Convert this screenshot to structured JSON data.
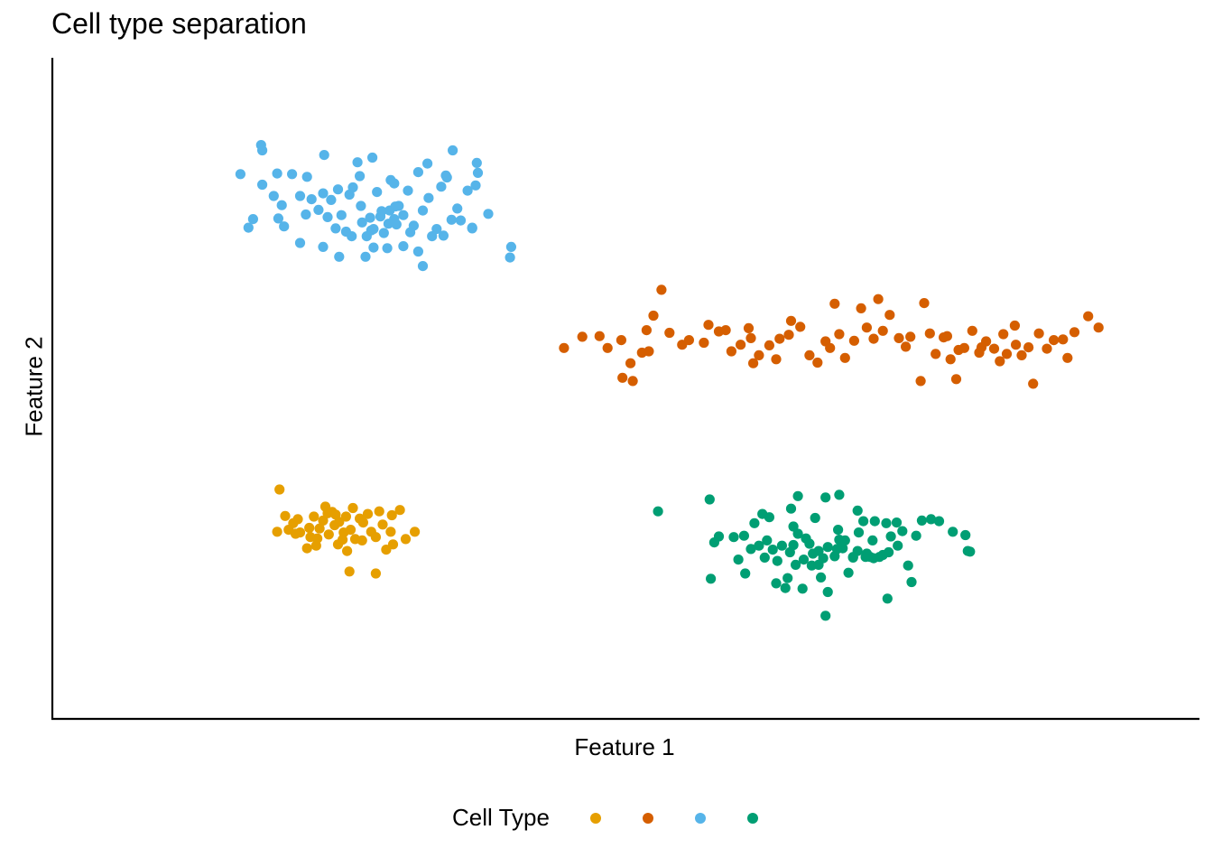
{
  "chart_data": {
    "type": "scatter",
    "title": "Cell type separation",
    "xlabel": "Feature 1",
    "ylabel": "Feature 2",
    "xlim": [
      0,
      100
    ],
    "ylim": [
      0,
      100
    ],
    "grid": false,
    "legend": {
      "title": "Cell Type",
      "position": "bottom"
    },
    "series": [
      {
        "color": "#E69F00",
        "points": [
          [
            19.8,
            34.7
          ],
          [
            20.3,
            30.7
          ],
          [
            19.6,
            28.3
          ],
          [
            20.6,
            28.6
          ],
          [
            21.0,
            29.6
          ],
          [
            21.6,
            28.2
          ],
          [
            21.4,
            30.2
          ],
          [
            22.4,
            28.9
          ],
          [
            22.5,
            27.5
          ],
          [
            23.0,
            26.2
          ],
          [
            22.2,
            25.8
          ],
          [
            23.3,
            28.8
          ],
          [
            23.6,
            30.0
          ],
          [
            24.0,
            31.1
          ],
          [
            23.8,
            32.1
          ],
          [
            24.4,
            31.3
          ],
          [
            24.6,
            29.3
          ],
          [
            24.1,
            27.9
          ],
          [
            24.9,
            26.4
          ],
          [
            25.4,
            28.2
          ],
          [
            25.0,
            29.8
          ],
          [
            25.6,
            30.6
          ],
          [
            26.2,
            31.9
          ],
          [
            26.0,
            28.6
          ],
          [
            26.4,
            27.2
          ],
          [
            25.7,
            25.4
          ],
          [
            25.9,
            22.3
          ],
          [
            27.1,
            29.7
          ],
          [
            27.8,
            28.3
          ],
          [
            28.2,
            27.5
          ],
          [
            28.8,
            29.4
          ],
          [
            29.5,
            28.3
          ],
          [
            28.5,
            31.4
          ],
          [
            29.6,
            30.8
          ],
          [
            30.3,
            31.6
          ],
          [
            29.7,
            26.4
          ],
          [
            29.1,
            25.6
          ],
          [
            30.8,
            27.2
          ],
          [
            28.2,
            22.0
          ],
          [
            31.6,
            28.3
          ],
          [
            21.2,
            28.0
          ],
          [
            23.1,
            27.3
          ],
          [
            24.7,
            30.9
          ],
          [
            26.8,
            30.3
          ],
          [
            27.5,
            31.0
          ],
          [
            22.8,
            30.6
          ],
          [
            25.3,
            27.1
          ],
          [
            27.0,
            27.0
          ]
        ]
      },
      {
        "color": "#D55E00",
        "points": [
          [
            44.6,
            56.1
          ],
          [
            46.2,
            57.8
          ],
          [
            47.7,
            57.9
          ],
          [
            49.6,
            57.3
          ],
          [
            50.6,
            51.1
          ],
          [
            50.4,
            53.8
          ],
          [
            51.4,
            55.4
          ],
          [
            51.8,
            58.8
          ],
          [
            52.4,
            61.0
          ],
          [
            53.1,
            64.9
          ],
          [
            53.8,
            58.4
          ],
          [
            54.9,
            56.6
          ],
          [
            55.5,
            57.3
          ],
          [
            56.8,
            56.9
          ],
          [
            58.1,
            58.6
          ],
          [
            59.2,
            55.6
          ],
          [
            60.0,
            56.6
          ],
          [
            60.9,
            57.6
          ],
          [
            61.1,
            53.8
          ],
          [
            61.6,
            55.0
          ],
          [
            62.5,
            56.5
          ],
          [
            63.4,
            57.5
          ],
          [
            64.2,
            58.1
          ],
          [
            64.4,
            60.2
          ],
          [
            65.2,
            59.3
          ],
          [
            66.0,
            55.0
          ],
          [
            66.7,
            53.9
          ],
          [
            67.4,
            57.1
          ],
          [
            67.8,
            56.1
          ],
          [
            68.6,
            58.2
          ],
          [
            69.1,
            54.6
          ],
          [
            69.9,
            57.2
          ],
          [
            71.0,
            59.2
          ],
          [
            71.6,
            57.5
          ],
          [
            72.4,
            58.7
          ],
          [
            73.0,
            61.1
          ],
          [
            73.8,
            57.6
          ],
          [
            74.4,
            56.3
          ],
          [
            74.8,
            57.8
          ],
          [
            75.7,
            51.1
          ],
          [
            76.5,
            58.3
          ],
          [
            77.0,
            55.2
          ],
          [
            77.7,
            57.7
          ],
          [
            78.3,
            54.4
          ],
          [
            78.8,
            51.4
          ],
          [
            79.5,
            56.1
          ],
          [
            80.2,
            58.7
          ],
          [
            80.8,
            55.4
          ],
          [
            81.4,
            57.1
          ],
          [
            82.1,
            56.0
          ],
          [
            82.6,
            54.1
          ],
          [
            83.2,
            55.2
          ],
          [
            83.9,
            59.5
          ],
          [
            84.5,
            55.0
          ],
          [
            85.1,
            56.2
          ],
          [
            85.5,
            50.7
          ],
          [
            86.0,
            58.3
          ],
          [
            86.7,
            56.0
          ],
          [
            87.3,
            57.3
          ],
          [
            88.1,
            57.4
          ],
          [
            88.5,
            54.6
          ],
          [
            89.1,
            58.5
          ],
          [
            90.3,
            60.9
          ],
          [
            91.2,
            59.2
          ],
          [
            57.2,
            59.6
          ],
          [
            48.4,
            56.1
          ],
          [
            60.7,
            59.1
          ],
          [
            63.1,
            54.4
          ],
          [
            68.2,
            62.8
          ],
          [
            70.5,
            62.1
          ],
          [
            72.0,
            63.5
          ],
          [
            76.0,
            62.9
          ],
          [
            78.0,
            57.9
          ],
          [
            79.0,
            55.8
          ],
          [
            81.0,
            56.2
          ],
          [
            82.9,
            58.2
          ],
          [
            84.0,
            56.6
          ],
          [
            49.7,
            51.6
          ],
          [
            52.0,
            55.6
          ],
          [
            58.7,
            58.8
          ]
        ]
      },
      {
        "color": "#56B4E9",
        "points": [
          [
            18.2,
            86.8
          ],
          [
            18.3,
            86.0
          ],
          [
            18.3,
            80.8
          ],
          [
            19.6,
            82.5
          ],
          [
            20.0,
            77.7
          ],
          [
            19.3,
            79.1
          ],
          [
            19.7,
            75.7
          ],
          [
            20.9,
            82.4
          ],
          [
            21.6,
            79.1
          ],
          [
            22.1,
            76.3
          ],
          [
            22.6,
            78.6
          ],
          [
            23.2,
            77.0
          ],
          [
            23.6,
            79.5
          ],
          [
            24.0,
            75.9
          ],
          [
            24.3,
            78.5
          ],
          [
            24.7,
            74.2
          ],
          [
            25.2,
            76.2
          ],
          [
            25.6,
            73.7
          ],
          [
            25.9,
            79.3
          ],
          [
            26.2,
            80.4
          ],
          [
            26.6,
            84.2
          ],
          [
            26.9,
            77.6
          ],
          [
            27.0,
            75.1
          ],
          [
            27.4,
            73.0
          ],
          [
            27.7,
            75.8
          ],
          [
            28.0,
            74.1
          ],
          [
            28.3,
            79.7
          ],
          [
            28.6,
            76.0
          ],
          [
            28.9,
            73.5
          ],
          [
            29.3,
            74.9
          ],
          [
            29.5,
            81.5
          ],
          [
            29.8,
            75.6
          ],
          [
            30.2,
            77.6
          ],
          [
            30.6,
            76.2
          ],
          [
            31.0,
            79.9
          ],
          [
            31.5,
            74.6
          ],
          [
            31.9,
            82.7
          ],
          [
            32.3,
            76.9
          ],
          [
            32.8,
            78.8
          ],
          [
            33.1,
            73.0
          ],
          [
            33.5,
            74.1
          ],
          [
            33.9,
            80.5
          ],
          [
            34.4,
            81.9
          ],
          [
            34.8,
            75.5
          ],
          [
            35.3,
            77.2
          ],
          [
            35.6,
            75.4
          ],
          [
            36.2,
            79.9
          ],
          [
            36.6,
            74.2
          ],
          [
            37.1,
            82.6
          ],
          [
            40.0,
            71.4
          ],
          [
            39.9,
            69.8
          ],
          [
            32.3,
            68.5
          ],
          [
            27.3,
            69.9
          ],
          [
            25.0,
            69.9
          ],
          [
            23.6,
            71.4
          ],
          [
            21.6,
            72.0
          ],
          [
            20.2,
            74.5
          ],
          [
            17.1,
            74.3
          ],
          [
            17.5,
            75.6
          ],
          [
            16.4,
            82.4
          ],
          [
            23.7,
            85.3
          ],
          [
            27.9,
            84.9
          ],
          [
            27.8,
            73.9
          ],
          [
            28.7,
            76.8
          ],
          [
            26.1,
            73.0
          ],
          [
            29.9,
            77.5
          ],
          [
            30.6,
            71.5
          ],
          [
            31.2,
            73.6
          ],
          [
            30.0,
            74.8
          ],
          [
            29.2,
            71.2
          ],
          [
            28.0,
            71.3
          ],
          [
            22.2,
            82.0
          ],
          [
            24.9,
            80.1
          ],
          [
            26.8,
            82.1
          ],
          [
            29.8,
            81.0
          ],
          [
            34.3,
            82.2
          ],
          [
            36.9,
            80.7
          ],
          [
            32.7,
            84.0
          ],
          [
            34.9,
            86.0
          ],
          [
            37.0,
            84.1
          ],
          [
            38.0,
            76.4
          ],
          [
            36.6,
            74.3
          ],
          [
            34.1,
            73.1
          ],
          [
            31.9,
            70.7
          ],
          [
            29.4,
            76.9
          ]
        ]
      },
      {
        "color": "#009E73",
        "points": [
          [
            52.8,
            31.4
          ],
          [
            57.3,
            33.2
          ],
          [
            58.1,
            27.6
          ],
          [
            57.7,
            26.7
          ],
          [
            57.4,
            21.2
          ],
          [
            59.4,
            27.5
          ],
          [
            60.3,
            27.7
          ],
          [
            59.8,
            24.1
          ],
          [
            60.4,
            22.0
          ],
          [
            60.9,
            25.7
          ],
          [
            61.6,
            26.2
          ],
          [
            61.2,
            29.6
          ],
          [
            61.9,
            31.0
          ],
          [
            62.5,
            30.5
          ],
          [
            62.3,
            27.0
          ],
          [
            62.8,
            25.6
          ],
          [
            63.2,
            23.9
          ],
          [
            63.1,
            20.5
          ],
          [
            63.9,
            19.8
          ],
          [
            64.3,
            25.2
          ],
          [
            64.6,
            26.3
          ],
          [
            64.8,
            23.3
          ],
          [
            65.5,
            24.1
          ],
          [
            65.4,
            19.7
          ],
          [
            65.0,
            28.0
          ],
          [
            66.0,
            26.5
          ],
          [
            66.2,
            23.2
          ],
          [
            66.5,
            30.4
          ],
          [
            66.8,
            25.4
          ],
          [
            67.0,
            21.4
          ],
          [
            67.6,
            26.0
          ],
          [
            67.4,
            33.5
          ],
          [
            68.2,
            24.6
          ],
          [
            68.5,
            28.6
          ],
          [
            68.6,
            33.9
          ],
          [
            68.9,
            25.8
          ],
          [
            69.4,
            22.1
          ],
          [
            69.8,
            24.5
          ],
          [
            70.3,
            28.2
          ],
          [
            70.2,
            31.5
          ],
          [
            70.9,
            24.5
          ],
          [
            71.5,
            27.0
          ],
          [
            71.7,
            29.9
          ],
          [
            72.1,
            24.5
          ],
          [
            72.7,
            29.6
          ],
          [
            72.8,
            18.2
          ],
          [
            73.1,
            27.6
          ],
          [
            73.6,
            29.7
          ],
          [
            74.1,
            28.4
          ],
          [
            74.6,
            23.2
          ],
          [
            74.9,
            20.7
          ],
          [
            75.3,
            27.7
          ],
          [
            75.8,
            30.0
          ],
          [
            76.6,
            30.2
          ],
          [
            77.3,
            29.9
          ],
          [
            78.5,
            28.3
          ],
          [
            79.6,
            27.8
          ],
          [
            79.8,
            25.4
          ],
          [
            80.0,
            25.3
          ],
          [
            67.4,
            15.6
          ],
          [
            64.1,
            21.3
          ],
          [
            67.6,
            19.2
          ],
          [
            68.6,
            27.1
          ],
          [
            70.7,
            29.9
          ],
          [
            71.3,
            24.5
          ],
          [
            71.6,
            24.3
          ],
          [
            72.4,
            24.8
          ],
          [
            73.7,
            26.2
          ],
          [
            69.1,
            27.0
          ],
          [
            68.4,
            25.7
          ],
          [
            67.2,
            24.3
          ],
          [
            66.3,
            25.0
          ],
          [
            65.7,
            27.3
          ],
          [
            64.6,
            29.1
          ],
          [
            63.6,
            26.2
          ],
          [
            62.1,
            24.4
          ],
          [
            64.4,
            31.8
          ],
          [
            65.0,
            33.7
          ],
          [
            70.2,
            25.4
          ],
          [
            71.0,
            25.0
          ],
          [
            72.9,
            25.2
          ],
          [
            69.8,
            24.4
          ],
          [
            66.8,
            23.3
          ]
        ]
      }
    ]
  }
}
